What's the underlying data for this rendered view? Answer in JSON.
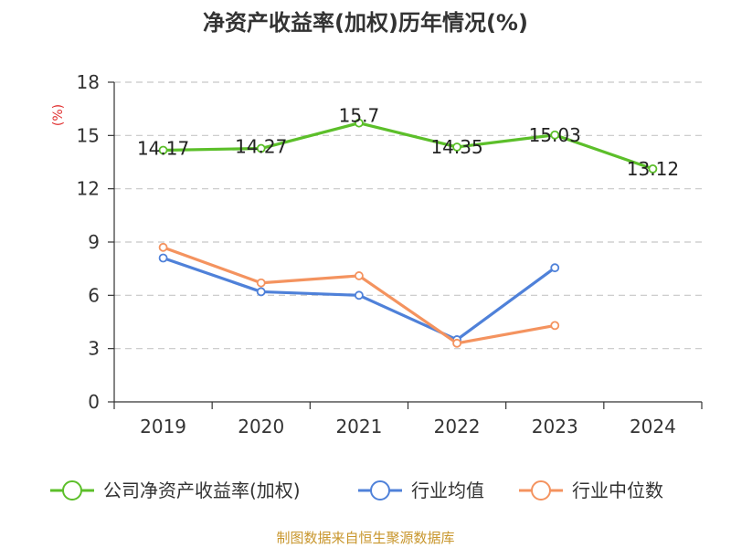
{
  "chart_data": {
    "type": "line",
    "title": "净资产收益率(加权)历年情况(%)",
    "ylabel": "(%)",
    "xlabel": "",
    "categories": [
      "2019",
      "2020",
      "2021",
      "2022",
      "2023",
      "2024"
    ],
    "ylim": [
      0,
      18
    ],
    "yticks": [
      0,
      3,
      6,
      9,
      12,
      15,
      18
    ],
    "grid": "horizontal-dashed",
    "legend_position": "bottom",
    "series": [
      {
        "name": "公司净资产收益率(加权)",
        "color": "#5cbf2a",
        "values": [
          14.17,
          14.27,
          15.7,
          14.35,
          15.03,
          13.12
        ],
        "labels": [
          "14.17",
          "14.27",
          "15.7",
          "14.35",
          "15.03",
          "13.12"
        ]
      },
      {
        "name": "行业均值",
        "color": "#4f81d9",
        "values": [
          8.1,
          6.2,
          6.0,
          3.5,
          7.55,
          null
        ]
      },
      {
        "name": "行业中位数",
        "color": "#f4935f",
        "values": [
          8.7,
          6.7,
          7.1,
          3.3,
          4.3,
          null
        ]
      }
    ],
    "source": "制图数据来自恒生聚源数据库"
  }
}
